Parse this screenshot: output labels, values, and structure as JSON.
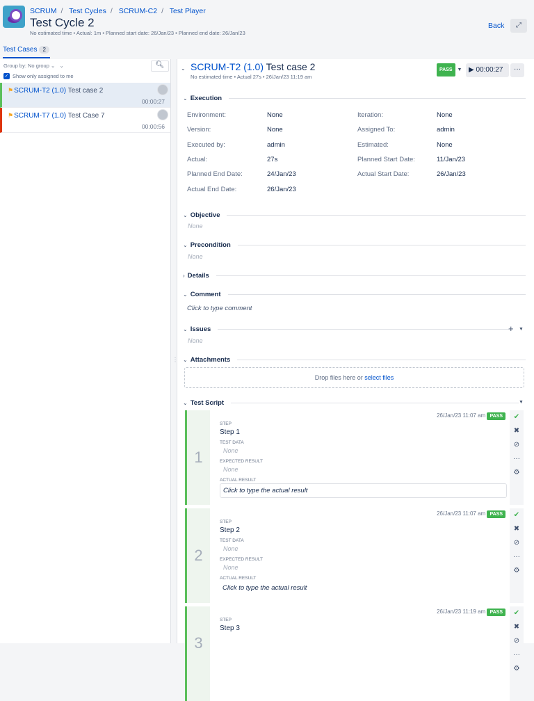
{
  "header": {
    "breadcrumbs": [
      "SCRUM",
      "Test Cycles",
      "SCRUM-C2",
      "Test Player"
    ],
    "title": "Test Cycle 2",
    "meta": "No estimated time • Actual: 1m • Planned start date: 26/Jan/23 • Planned end date: 26/Jan/23",
    "back": "Back"
  },
  "tab": {
    "label": "Test Cases",
    "count": "2"
  },
  "sidebar": {
    "group_by": "Group by: No group",
    "show_only_assigned": "Show only assigned to me",
    "show_only_checked": true,
    "items": [
      {
        "key": "SCRUM-T2 (1.0)",
        "name": "Test case 2",
        "time": "00:00:27",
        "status_color": "#5bbf5b",
        "selected": true
      },
      {
        "key": "SCRUM-T7 (1.0)",
        "name": "Test Case 7",
        "time": "00:00:56",
        "status_color": "#de350b",
        "selected": false
      }
    ]
  },
  "detail": {
    "key": "SCRUM-T2 (1.0)",
    "name": "Test case 2",
    "meta": "No estimated time • Actual 27s • 26/Jan/23 11:19 am",
    "status": "PASS",
    "timer": "00:00:27",
    "execution_title": "Execution",
    "fields_left": [
      {
        "label": "Environment:",
        "value": "None"
      },
      {
        "label": "Version:",
        "value": "None"
      },
      {
        "label": "Executed by:",
        "value": "admin"
      },
      {
        "label": "Actual:",
        "value": "27s"
      },
      {
        "label": "Planned End Date:",
        "value": "24/Jan/23"
      },
      {
        "label": "Actual End Date:",
        "value": "26/Jan/23"
      }
    ],
    "fields_right": [
      {
        "label": "Iteration:",
        "value": "None"
      },
      {
        "label": "Assigned To:",
        "value": "admin"
      },
      {
        "label": "Estimated:",
        "value": "None"
      },
      {
        "label": "Planned Start Date:",
        "value": "11/Jan/23"
      },
      {
        "label": "Actual Start Date:",
        "value": "26/Jan/23"
      }
    ],
    "objective": "Objective",
    "objective_value": "None",
    "precondition": "Precondition",
    "precondition_value": "None",
    "details": "Details",
    "comment": "Comment",
    "comment_placeholder": "Click to type comment",
    "issues": "Issues",
    "issues_value": "None",
    "attachments": "Attachments",
    "drop_text": "Drop files here or",
    "select_files": "select files",
    "test_script": "Test Script"
  },
  "steps": {
    "labels": {
      "step": "Step",
      "test_data": "Test data",
      "expected": "Expected result",
      "actual": "Actual result"
    },
    "items": [
      {
        "num": "1",
        "timestamp": "26/Jan/23 11:07 am",
        "status": "PASS",
        "step": "Step 1",
        "test_data": "None",
        "expected": "None",
        "actual": "Click to type the actual result"
      },
      {
        "num": "2",
        "timestamp": "26/Jan/23 11:07 am",
        "status": "PASS",
        "step": "Step 2",
        "test_data": "None",
        "expected": "None",
        "actual": "Click to type the actual result"
      },
      {
        "num": "3",
        "timestamp": "26/Jan/23 11:19 am",
        "status": "PASS",
        "step": "Step 3"
      }
    ]
  }
}
